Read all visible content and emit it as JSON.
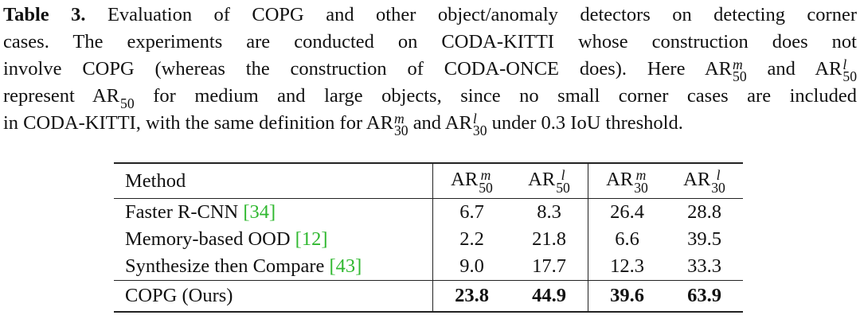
{
  "caption": {
    "label": "Table 3.",
    "lines": [
      {
        "runs": [
          " Evaluation of COPG and other object/anomaly detectors on detecting corner"
        ]
      },
      {
        "runs": [
          "cases. The experiments are conducted on CODA-KITTI whose construction does not"
        ]
      },
      {
        "runs": [
          "involve COPG (whereas the construction of CODA-ONCE does). Here ",
          {
            "base": "AR",
            "sup": "m",
            "sub": "50"
          },
          " and ",
          {
            "base": "AR",
            "sup": "l",
            "sub": "50"
          }
        ]
      },
      {
        "runs": [
          "represent ",
          {
            "base": "AR",
            "sub": "50"
          },
          " for medium and large objects, since no small corner cases are included"
        ]
      },
      {
        "runs": [
          "in CODA-KITTI, with the same definition for ",
          {
            "base": "AR",
            "sup": "m",
            "sub": "30"
          },
          " and ",
          {
            "base": "AR",
            "sup": "l",
            "sub": "30"
          },
          " under 0.3 IoU threshold."
        ]
      }
    ]
  },
  "table": {
    "header": {
      "method": "Method",
      "columns": [
        {
          "base": "AR",
          "sup": "m",
          "sub": "50"
        },
        {
          "base": "AR",
          "sup": "l",
          "sub": "50"
        },
        {
          "base": "AR",
          "sup": "m",
          "sub": "30"
        },
        {
          "base": "AR",
          "sup": "l",
          "sub": "30"
        }
      ]
    },
    "rows": [
      {
        "method": "Faster R-CNN",
        "ref": "[34]",
        "values": [
          "6.7",
          "8.3",
          "26.4",
          "28.8"
        ]
      },
      {
        "method": "Memory-based OOD",
        "ref": "[12]",
        "values": [
          "2.2",
          "21.8",
          "6.6",
          "39.5"
        ]
      },
      {
        "method": "Synthesize then Compare",
        "ref": "[43]",
        "values": [
          "9.0",
          "17.7",
          "12.3",
          "33.3"
        ]
      },
      {
        "method": "COPG (Ours)",
        "values": [
          "23.8",
          "44.9",
          "39.6",
          "63.9"
        ],
        "highlight": true
      }
    ]
  }
}
